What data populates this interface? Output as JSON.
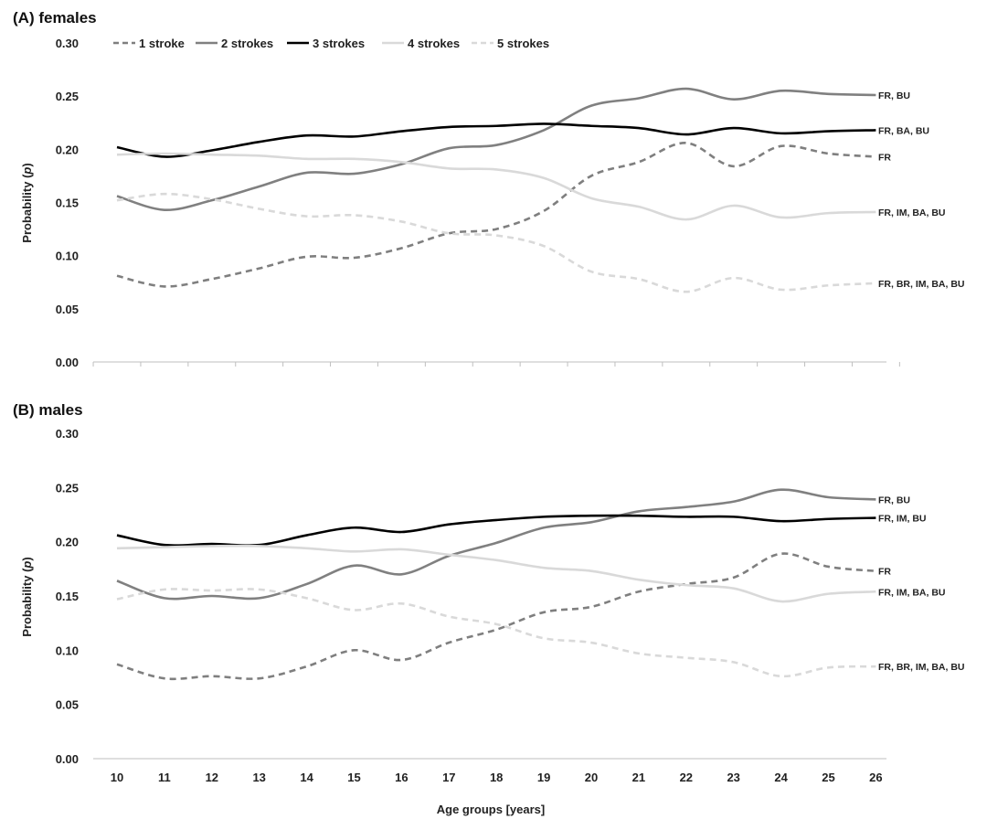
{
  "chart_data": [
    {
      "type": "line",
      "panel_title": "(A) females",
      "ylabel": "Probability (p)",
      "xlabel": "",
      "ylim": [
        0,
        0.3
      ],
      "yticks": [
        "0.00",
        "0.05",
        "0.10",
        "0.15",
        "0.20",
        "0.25",
        "0.30"
      ],
      "categories": [
        "10",
        "11",
        "12",
        "13",
        "14",
        "15",
        "16",
        "17",
        "18",
        "19",
        "20",
        "21",
        "22",
        "23",
        "24",
        "25",
        "26"
      ],
      "legend_position": "top-left",
      "series": [
        {
          "name": "1 stroke",
          "color": "#7f7f7f",
          "style": "dashed",
          "values": [
            0.081,
            0.071,
            0.078,
            0.088,
            0.099,
            0.098,
            0.107,
            0.121,
            0.125,
            0.142,
            0.175,
            0.188,
            0.206,
            0.184,
            0.203,
            0.196,
            0.193
          ],
          "annotation": "FR"
        },
        {
          "name": "2 strokes",
          "color": "#808080",
          "style": "solid",
          "values": [
            0.156,
            0.143,
            0.152,
            0.165,
            0.178,
            0.177,
            0.186,
            0.201,
            0.204,
            0.218,
            0.241,
            0.248,
            0.257,
            0.247,
            0.255,
            0.252,
            0.251
          ],
          "annotation": "FR, BU"
        },
        {
          "name": "3 strokes",
          "color": "#000000",
          "style": "solid",
          "values": [
            0.202,
            0.193,
            0.199,
            0.207,
            0.213,
            0.212,
            0.217,
            0.221,
            0.222,
            0.224,
            0.222,
            0.22,
            0.214,
            0.22,
            0.215,
            0.217,
            0.218
          ],
          "annotation": "FR, BA, BU"
        },
        {
          "name": "4 strokes",
          "color": "#d9d9d9",
          "style": "solid",
          "values": [
            0.195,
            0.196,
            0.195,
            0.194,
            0.191,
            0.191,
            0.188,
            0.182,
            0.181,
            0.173,
            0.154,
            0.146,
            0.134,
            0.147,
            0.136,
            0.14,
            0.141
          ],
          "annotation": "FR, IM, BA, BU"
        },
        {
          "name": "5 strokes",
          "color": "#d9d9d9",
          "style": "dashed",
          "values": [
            0.152,
            0.158,
            0.153,
            0.144,
            0.137,
            0.138,
            0.132,
            0.121,
            0.119,
            0.109,
            0.085,
            0.078,
            0.066,
            0.079,
            0.068,
            0.072,
            0.074
          ],
          "annotation": "FR, BR, IM, BA, BU"
        }
      ]
    },
    {
      "type": "line",
      "panel_title": "(B) males",
      "ylabel": "Probability (p)",
      "xlabel": "Age groups [years]",
      "ylim": [
        0,
        0.3
      ],
      "yticks": [
        "0.00",
        "0.05",
        "0.10",
        "0.15",
        "0.20",
        "0.25",
        "0.30"
      ],
      "categories": [
        "10",
        "11",
        "12",
        "13",
        "14",
        "15",
        "16",
        "17",
        "18",
        "19",
        "20",
        "21",
        "22",
        "23",
        "24",
        "25",
        "26"
      ],
      "series": [
        {
          "name": "1 stroke",
          "color": "#7f7f7f",
          "style": "dashed",
          "values": [
            0.087,
            0.074,
            0.076,
            0.074,
            0.085,
            0.1,
            0.091,
            0.107,
            0.119,
            0.135,
            0.14,
            0.154,
            0.161,
            0.167,
            0.189,
            0.177,
            0.173
          ],
          "annotation": "FR"
        },
        {
          "name": "2 strokes",
          "color": "#808080",
          "style": "solid",
          "values": [
            0.164,
            0.148,
            0.15,
            0.148,
            0.161,
            0.178,
            0.17,
            0.187,
            0.199,
            0.213,
            0.218,
            0.228,
            0.232,
            0.237,
            0.248,
            0.241,
            0.239
          ],
          "annotation": "FR, BU"
        },
        {
          "name": "3 strokes",
          "color": "#000000",
          "style": "solid",
          "values": [
            0.206,
            0.197,
            0.198,
            0.197,
            0.206,
            0.213,
            0.209,
            0.216,
            0.22,
            0.223,
            0.224,
            0.224,
            0.223,
            0.223,
            0.219,
            0.221,
            0.222
          ],
          "annotation": "FR, IM, BU"
        },
        {
          "name": "4 strokes",
          "color": "#d9d9d9",
          "style": "solid",
          "values": [
            0.194,
            0.195,
            0.196,
            0.196,
            0.194,
            0.191,
            0.193,
            0.188,
            0.183,
            0.176,
            0.173,
            0.165,
            0.16,
            0.157,
            0.145,
            0.152,
            0.154
          ],
          "annotation": "FR, IM, BA, BU"
        },
        {
          "name": "5 strokes",
          "color": "#d9d9d9",
          "style": "dashed",
          "values": [
            0.147,
            0.156,
            0.155,
            0.156,
            0.148,
            0.137,
            0.143,
            0.131,
            0.124,
            0.111,
            0.107,
            0.097,
            0.093,
            0.089,
            0.076,
            0.084,
            0.085
          ],
          "annotation": "FR, BR, IM, BA, BU"
        }
      ]
    }
  ]
}
